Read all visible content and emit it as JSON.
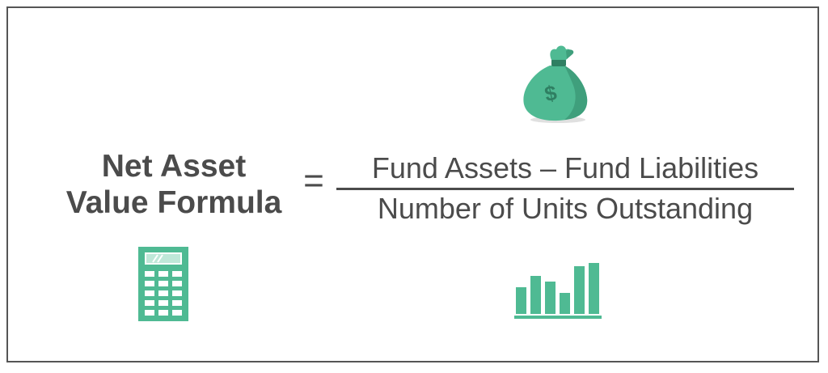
{
  "formula": {
    "lhs_line1": "Net Asset",
    "lhs_line2": "Value Formula",
    "equals": "=",
    "numerator": "Fund Assets – Fund Liabilities",
    "denominator": "Number of Units Outstanding"
  },
  "icons": {
    "money_bag": "money-bag-icon",
    "money_bag_symbol": "$",
    "calculator": "calculator-icon",
    "bar_chart": "bar-chart-icon"
  },
  "colors": {
    "text": "#4b4b4b",
    "accent": "#4fba93",
    "accent_dark": "#2f7f62",
    "border": "#555555"
  },
  "bar_chart_levels": [
    0.5,
    0.71,
    0.6,
    0.4,
    0.9,
    0.95
  ]
}
